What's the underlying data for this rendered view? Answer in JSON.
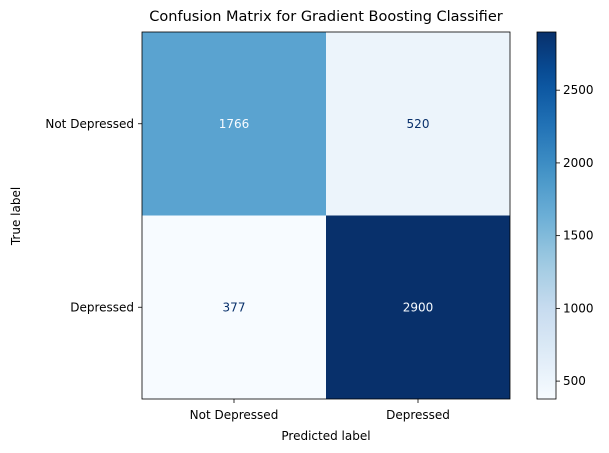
{
  "chart_data": {
    "type": "heatmap",
    "title": "Confusion Matrix for Gradient Boosting Classifier",
    "xlabel": "Predicted label",
    "ylabel": "True label",
    "x_categories": [
      "Not Depressed",
      "Depressed"
    ],
    "y_categories": [
      "Not Depressed",
      "Depressed"
    ],
    "values": [
      [
        1766,
        520
      ],
      [
        377,
        2900
      ]
    ],
    "colormap": "Blues",
    "color_range": [
      377,
      2900
    ],
    "colorbar_ticks": [
      500,
      1000,
      1500,
      2000,
      2500
    ],
    "colors": {
      "low": "#f7fbff",
      "high": "#08306b",
      "text_dark": "#08306b",
      "text_light": "#f7fbff"
    }
  }
}
